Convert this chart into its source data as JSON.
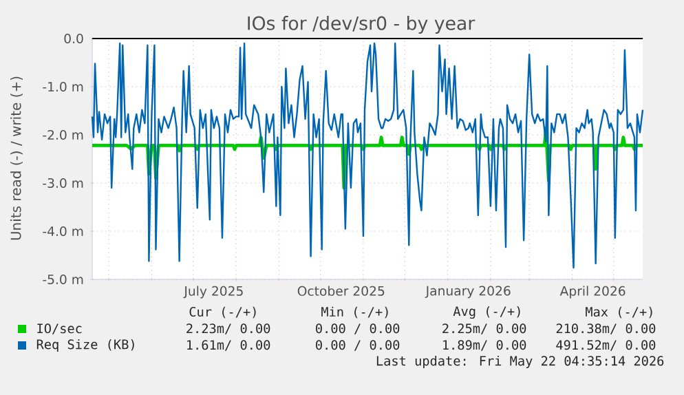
{
  "chart_data": {
    "type": "line",
    "title": "IOs for /dev/sr0 - by year",
    "ylabel": "Units read (-) / write (+)",
    "xlim": [
      "2025-04-19",
      "2026-05-22"
    ],
    "xticks": [
      {
        "value": "2025-05-01",
        "label": null
      },
      {
        "value": "2025-06-01",
        "label": null
      },
      {
        "value": "2025-07-01",
        "label": null
      },
      {
        "value": "2025-08-01",
        "label": null
      },
      {
        "value": "2025-09-01",
        "label": null
      },
      {
        "value": "2025-10-01",
        "label": null
      },
      {
        "value": "2025-11-01",
        "label": null
      },
      {
        "value": "2025-12-01",
        "label": null
      },
      {
        "value": "2026-01-01",
        "label": null
      },
      {
        "value": "2026-02-01",
        "label": null
      },
      {
        "value": "2026-03-01",
        "label": null
      },
      {
        "value": "2026-04-01",
        "label": null
      },
      {
        "value": "2026-05-01",
        "label": null
      },
      {
        "value": "2025-07-16",
        "label": "July 2025"
      },
      {
        "value": "2025-10-16",
        "label": "October 2025"
      },
      {
        "value": "2026-01-16",
        "label": "January 2026"
      },
      {
        "value": "2026-04-16",
        "label": "April 2026"
      }
    ],
    "ylim": [
      -5,
      0
    ],
    "yticks": [
      {
        "value": -5,
        "label": "-5.0 m"
      },
      {
        "value": -4,
        "label": "-4.0 m"
      },
      {
        "value": -3,
        "label": "-3.0 m"
      },
      {
        "value": -2,
        "label": "-2.0 m"
      },
      {
        "value": -1,
        "label": "-1.0 m"
      },
      {
        "value": 0,
        "label": "0.0"
      }
    ],
    "grid": true,
    "legend": "bottom",
    "marker": "none",
    "line_style": "solid",
    "ref_lines": [
      {
        "axis": "y",
        "value": 0,
        "color": "#000000"
      }
    ],
    "series": [
      {
        "name": "IO/sec",
        "color": "#00cc00",
        "x": [
          "2025-04-19",
          "2025-05-14",
          "2025-05-17",
          "2025-05-20",
          "2025-05-29",
          "2025-05-30",
          "2025-06-01",
          "2025-06-03",
          "2025-06-04",
          "2025-06-06",
          "2025-06-20",
          "2025-06-21",
          "2025-06-22",
          "2025-07-03",
          "2025-07-04",
          "2025-07-05",
          "2025-07-30",
          "2025-07-31",
          "2025-08-01",
          "2025-08-18",
          "2025-08-19",
          "2025-08-21",
          "2025-08-23",
          "2025-08-29",
          "2025-08-30",
          "2025-08-31",
          "2025-09-23",
          "2025-09-24",
          "2025-09-25",
          "2025-10-17",
          "2025-10-18",
          "2025-10-19",
          "2025-10-31",
          "2025-11-01",
          "2025-11-02",
          "2025-11-13",
          "2025-11-14",
          "2025-11-15",
          "2025-11-28",
          "2025-11-29",
          "2025-11-30",
          "2025-12-03",
          "2025-12-04",
          "2025-12-05",
          "2025-12-12",
          "2025-12-13",
          "2025-12-14",
          "2026-01-23",
          "2026-01-24",
          "2026-01-25",
          "2026-01-31",
          "2026-02-01",
          "2026-02-02",
          "2026-02-10",
          "2026-02-11",
          "2026-02-12",
          "2026-03-12",
          "2026-03-13",
          "2026-03-15",
          "2026-03-16",
          "2026-03-30",
          "2026-03-31",
          "2026-04-01",
          "2026-04-17",
          "2026-04-18",
          "2026-04-19",
          "2026-05-01",
          "2026-05-02",
          "2026-05-03",
          "2026-05-07",
          "2026-05-08",
          "2026-05-09",
          "2026-05-15",
          "2026-05-16",
          "2026-05-17",
          "2026-05-22"
        ],
        "values": [
          -2.22,
          -2.22,
          -2.29,
          -2.22,
          -2.22,
          -2.81,
          -2.22,
          -2.22,
          -2.9,
          -2.22,
          -2.22,
          -2.33,
          -2.22,
          -2.22,
          -2.3,
          -2.22,
          -2.22,
          -2.3,
          -2.22,
          -2.22,
          -2.05,
          -2.48,
          -2.22,
          -2.22,
          -2.3,
          -2.22,
          -2.22,
          -2.3,
          -2.22,
          -2.22,
          -3.1,
          -2.22,
          -2.22,
          -2.3,
          -2.22,
          -2.22,
          -2.05,
          -2.22,
          -2.22,
          -2.05,
          -2.22,
          -2.22,
          -2.4,
          -2.22,
          -2.22,
          -2.3,
          -2.22,
          -2.22,
          -2.3,
          -2.22,
          -2.22,
          -2.3,
          -2.22,
          -2.22,
          -2.3,
          -2.22,
          -2.22,
          -1.86,
          -2.95,
          -2.22,
          -2.22,
          -2.3,
          -2.22,
          -2.22,
          -2.71,
          -2.22,
          -2.22,
          -2.3,
          -2.22,
          -2.22,
          -2.05,
          -2.22,
          -2.22,
          -2.3,
          -2.22,
          -2.22
        ]
      },
      {
        "name": "Req Size (KB)",
        "color": "#0066b3",
        "x": [
          "2025-04-19",
          "2025-04-20",
          "2025-04-21",
          "2025-04-23",
          "2025-04-24",
          "2025-04-26",
          "2025-04-28",
          "2025-04-30",
          "2025-05-02",
          "2025-05-03",
          "2025-05-05",
          "2025-05-06",
          "2025-05-07",
          "2025-05-09",
          "2025-05-10",
          "2025-05-11",
          "2025-05-13",
          "2025-05-15",
          "2025-05-16",
          "2025-05-18",
          "2025-05-19",
          "2025-05-21",
          "2025-05-23",
          "2025-05-25",
          "2025-05-27",
          "2025-05-29",
          "2025-05-30",
          "2025-06-01",
          "2025-06-03",
          "2025-06-04",
          "2025-06-06",
          "2025-06-08",
          "2025-06-10",
          "2025-06-13",
          "2025-06-15",
          "2025-06-17",
          "2025-06-19",
          "2025-06-21",
          "2025-06-23",
          "2025-06-24",
          "2025-06-26",
          "2025-06-28",
          "2025-06-29",
          "2025-07-02",
          "2025-07-04",
          "2025-07-06",
          "2025-07-08",
          "2025-07-10",
          "2025-07-13",
          "2025-07-14",
          "2025-07-16",
          "2025-07-18",
          "2025-07-20",
          "2025-07-22",
          "2025-07-24",
          "2025-07-26",
          "2025-07-28",
          "2025-07-30",
          "2025-08-01",
          "2025-08-03",
          "2025-08-04",
          "2025-08-05",
          "2025-08-07",
          "2025-08-08",
          "2025-08-10",
          "2025-08-12",
          "2025-08-14",
          "2025-08-17",
          "2025-08-19",
          "2025-08-21",
          "2025-08-23",
          "2025-08-25",
          "2025-08-28",
          "2025-08-30",
          "2025-08-31",
          "2025-09-02",
          "2025-09-03",
          "2025-09-05",
          "2025-09-06",
          "2025-09-08",
          "2025-09-10",
          "2025-09-12",
          "2025-09-14",
          "2025-09-16",
          "2025-09-18",
          "2025-09-20",
          "2025-09-22",
          "2025-09-24",
          "2025-09-26",
          "2025-09-28",
          "2025-09-30",
          "2025-10-02",
          "2025-10-03",
          "2025-10-05",
          "2025-10-07",
          "2025-10-09",
          "2025-10-11",
          "2025-10-14",
          "2025-10-16",
          "2025-10-17",
          "2025-10-19",
          "2025-10-21",
          "2025-10-23",
          "2025-10-25",
          "2025-10-27",
          "2025-10-28",
          "2025-10-30",
          "2025-11-01",
          "2025-11-02",
          "2025-11-04",
          "2025-11-06",
          "2025-11-07",
          "2025-11-09",
          "2025-11-10",
          "2025-11-12",
          "2025-11-14",
          "2025-11-15",
          "2025-11-17",
          "2025-11-19",
          "2025-11-21",
          "2025-11-23",
          "2025-11-24",
          "2025-11-26",
          "2025-11-28",
          "2025-11-30",
          "2025-12-02",
          "2025-12-04",
          "2025-12-05",
          "2025-12-07",
          "2025-12-08",
          "2025-12-10",
          "2025-12-12",
          "2025-12-13",
          "2025-12-15",
          "2025-12-17",
          "2025-12-19",
          "2025-12-21",
          "2025-12-23",
          "2025-12-25",
          "2025-12-26",
          "2025-12-28",
          "2025-12-30",
          "2025-12-31",
          "2026-01-02",
          "2026-01-04",
          "2026-01-06",
          "2026-01-08",
          "2026-01-10",
          "2026-01-12",
          "2026-01-14",
          "2026-01-16",
          "2026-01-17",
          "2026-01-19",
          "2026-01-21",
          "2026-01-23",
          "2026-01-25",
          "2026-01-26",
          "2026-01-28",
          "2026-01-30",
          "2026-02-01",
          "2026-02-03",
          "2026-02-05",
          "2026-02-07",
          "2026-02-08",
          "2026-02-10",
          "2026-02-12",
          "2026-02-13",
          "2026-02-15",
          "2026-02-17",
          "2026-02-19",
          "2026-02-21",
          "2026-02-23",
          "2026-02-25",
          "2026-02-27",
          "2026-03-01",
          "2026-03-03",
          "2026-03-05",
          "2026-03-07",
          "2026-03-09",
          "2026-03-11",
          "2026-03-13",
          "2026-03-14",
          "2026-03-15",
          "2026-03-17",
          "2026-03-19",
          "2026-03-21",
          "2026-03-23",
          "2026-03-25",
          "2026-03-27",
          "2026-03-29",
          "2026-03-31",
          "2026-04-02",
          "2026-04-04",
          "2026-04-06",
          "2026-04-08",
          "2026-04-10",
          "2026-04-12",
          "2026-04-13",
          "2026-04-15",
          "2026-04-16",
          "2026-04-18",
          "2026-04-20",
          "2026-04-22",
          "2026-04-24",
          "2026-04-26",
          "2026-04-28",
          "2026-04-29",
          "2026-05-01",
          "2026-05-02",
          "2026-05-04",
          "2026-05-06",
          "2026-05-08",
          "2026-05-09",
          "2026-05-11",
          "2026-05-13",
          "2026-05-14",
          "2026-05-16",
          "2026-05-17",
          "2026-05-18",
          "2026-05-20",
          "2026-05-22"
        ],
        "values": [
          -1.62,
          -2.05,
          -0.52,
          -1.95,
          -1.52,
          -2.1,
          -1.57,
          -1.76,
          -1.62,
          -3.1,
          -1.67,
          -2.05,
          -1.57,
          -0.1,
          -2.05,
          -0.14,
          -1.95,
          -1.57,
          -2.05,
          -2.71,
          -1.86,
          -1.57,
          -1.95,
          -1.48,
          -1.76,
          -0.14,
          -4.62,
          -1.57,
          -0.14,
          -4.38,
          -1.67,
          -1.95,
          -1.62,
          -1.86,
          -1.67,
          -1.43,
          -1.86,
          -4.62,
          -1.67,
          -0.67,
          -1.95,
          -0.57,
          -1.57,
          -1.86,
          -3.52,
          -1.48,
          -1.86,
          -1.57,
          -3.76,
          -1.48,
          -1.86,
          -1.62,
          -1.86,
          -4.14,
          -1.57,
          -1.95,
          -1.48,
          -1.67,
          -1.62,
          -1.62,
          -0.19,
          -1.67,
          -0.1,
          -1.57,
          -1.71,
          -1.86,
          -1.38,
          -1.57,
          -2.05,
          -3.19,
          -1.57,
          -1.95,
          -1.57,
          -3.48,
          -2.05,
          -3.67,
          -1.0,
          -1.86,
          -0.62,
          -1.76,
          -1.38,
          -2.05,
          -1.57,
          -0.86,
          -0.57,
          -1.67,
          -0.9,
          -4.52,
          -1.57,
          -2.05,
          -1.67,
          -4.38,
          -1.76,
          -0.67,
          -1.76,
          -1.9,
          -1.57,
          -2.05,
          -1.57,
          -1.57,
          -3.95,
          -1.76,
          -3.1,
          -1.76,
          -1.67,
          -1.95,
          -1.76,
          -4.1,
          -1.48,
          -0.48,
          -0.14,
          -1.1,
          -0.1,
          -0.33,
          -1.67,
          -1.86,
          -1.86,
          -1.67,
          -1.71,
          -1.67,
          -1.48,
          -0.1,
          -1.67,
          -1.57,
          -1.48,
          -1.86,
          -4.29,
          -2.14,
          -0.67,
          -1.95,
          -2.81,
          -3.38,
          -3.57,
          -2.05,
          -2.43,
          -1.76,
          -1.86,
          -2.0,
          -1.57,
          -0.14,
          -1.1,
          -0.43,
          -1.57,
          -0.62,
          -1.67,
          -0.57,
          -1.86,
          -1.67,
          -1.71,
          -1.9,
          -1.86,
          -1.76,
          -1.95,
          -1.67,
          -3.67,
          -1.57,
          -1.86,
          -2.05,
          -2.05,
          -3.48,
          -1.67,
          -3.57,
          -1.86,
          -1.67,
          -1.86,
          -4.33,
          -1.38,
          -1.67,
          -1.76,
          -1.57,
          -1.95,
          -1.71,
          -4.19,
          -1.67,
          -0.33,
          -1.57,
          -1.76,
          -1.57,
          -1.71,
          -1.67,
          -2.14,
          -0.57,
          -3.67,
          -1.76,
          -1.95,
          -1.57,
          -1.57,
          -1.76,
          -1.57,
          -2.05,
          -3.29,
          -4.76,
          -1.86,
          -1.95,
          -1.76,
          -1.86,
          -1.48,
          -1.76,
          -1.67,
          -1.95,
          -4.67,
          -2.05,
          -1.76,
          -1.48,
          -1.57,
          -1.86,
          -1.76,
          -1.95,
          -4.14,
          -1.48,
          -1.57,
          -1.48,
          -0.24,
          -1.86,
          -1.76,
          -1.86,
          -2.05,
          -3.57,
          -1.57,
          -1.95,
          -1.48
        ]
      }
    ],
    "annotations": [
      "Cur (-/+)",
      "Min (-/+)",
      "Avg (-/+)",
      "Max (-/+)",
      "2.23m/ 0.00",
      "0.00 / 0.00",
      "2.25m/ 0.00",
      "210.38m/ 0.00",
      "1.61m/ 0.00",
      "0.00 / 0.00",
      "1.89m/ 0.00",
      "491.52m/ 0.00",
      "Last update: Fri May 22 04:35:14 2026"
    ]
  }
}
